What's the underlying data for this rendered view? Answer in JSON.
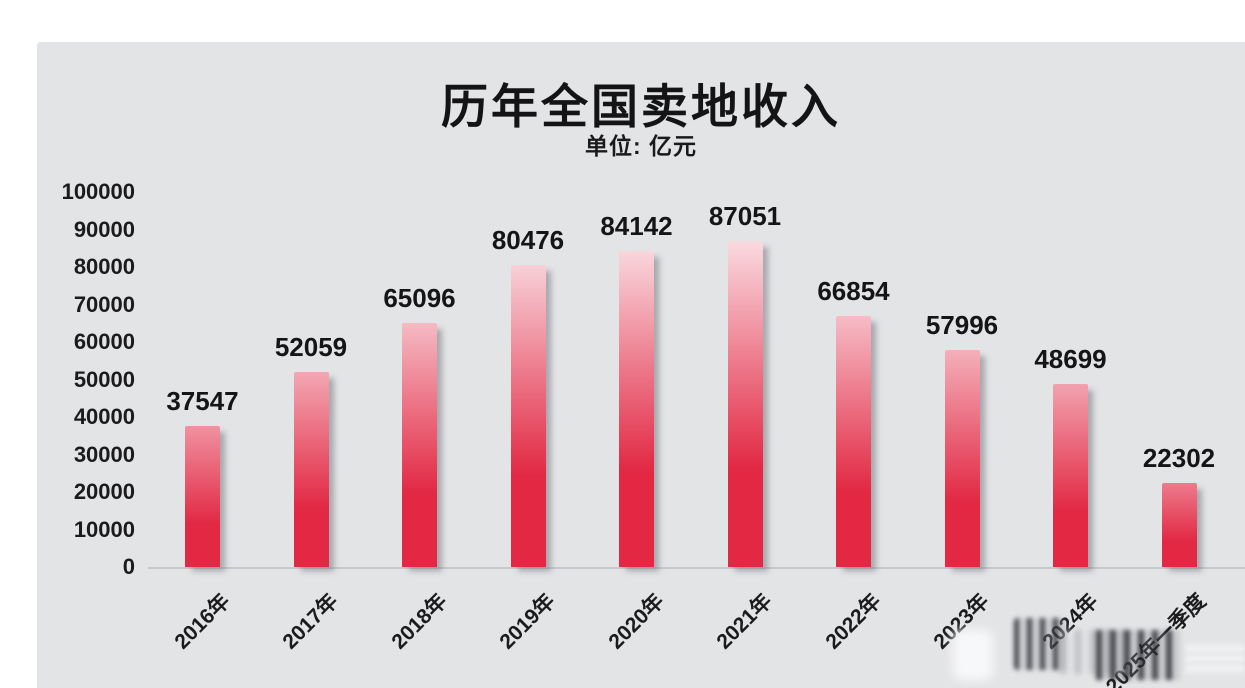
{
  "page": {
    "outer_background": "#ffffff",
    "panel_background": "#e3e4e6"
  },
  "chart_data": {
    "type": "bar",
    "title": "历年全国卖地收入",
    "subtitle": "单位: 亿元",
    "categories": [
      "2016年",
      "2017年",
      "2018年",
      "2019年",
      "2020年",
      "2021年",
      "2022年",
      "2023年",
      "2024年",
      "2025年一季度"
    ],
    "values": [
      37547,
      52059,
      65096,
      80476,
      84142,
      87051,
      66854,
      57996,
      48699,
      22302
    ],
    "value_labels": [
      "37547",
      "52059",
      "65096",
      "80476",
      "84142",
      "87051",
      "66854",
      "57996",
      "48699",
      "22302"
    ],
    "ylim": [
      0,
      100000
    ],
    "ytick_step": 10000,
    "yticks": [
      0,
      10000,
      20000,
      30000,
      40000,
      50000,
      60000,
      70000,
      80000,
      90000,
      100000
    ],
    "grid": false,
    "legend": null,
    "xlabel": "",
    "ylabel": "",
    "colors": {
      "bar_bottom_red": "#e22843",
      "bar_top_light": "#fdf3f5",
      "axis_line": "#c7c8cb",
      "label_text": "#1b1b1d"
    },
    "layout": {
      "x_tick_rotation_deg": -45,
      "value_labels_position": "above-bars",
      "bar_shadow": true
    }
  },
  "artifacts": {
    "watermark_smudge": "blurred vertical-streak smudge over bottom-right x-axis labels"
  }
}
